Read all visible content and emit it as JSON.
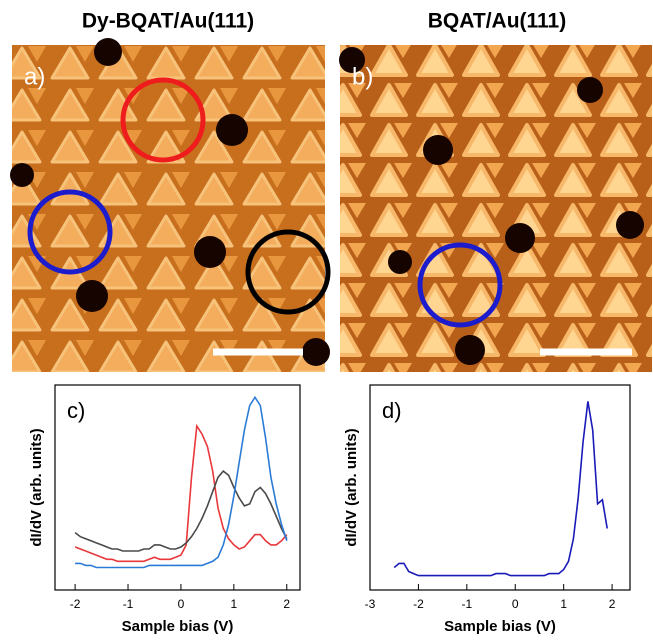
{
  "images": [
    {
      "title": "Dy-BQAT/Au(111)",
      "label": "a)"
    },
    {
      "title": "BQAT/Au(111)",
      "label": "b)"
    }
  ],
  "chart_data": [
    {
      "type": "line",
      "label": "c)",
      "x_label": "Sample bias (V)",
      "y_label": "dI/dV (arb. units)",
      "x": [
        -2.0,
        -1.9,
        -1.8,
        -1.7,
        -1.6,
        -1.5,
        -1.4,
        -1.3,
        -1.2,
        -1.1,
        -1.0,
        -0.9,
        -0.8,
        -0.7,
        -0.6,
        -0.5,
        -0.4,
        -0.3,
        -0.2,
        -0.1,
        0.0,
        0.1,
        0.2,
        0.3,
        0.4,
        0.5,
        0.6,
        0.7,
        0.8,
        0.9,
        1.0,
        1.1,
        1.2,
        1.3,
        1.4,
        1.5,
        1.6,
        1.7,
        1.8,
        1.9,
        2.0
      ],
      "series": [
        {
          "color": "#e8383b",
          "values": [
            0.21,
            0.2,
            0.19,
            0.18,
            0.17,
            0.16,
            0.15,
            0.15,
            0.14,
            0.14,
            0.14,
            0.14,
            0.14,
            0.14,
            0.15,
            0.16,
            0.15,
            0.15,
            0.15,
            0.16,
            0.17,
            0.22,
            0.55,
            0.8,
            0.76,
            0.7,
            0.58,
            0.4,
            0.3,
            0.25,
            0.22,
            0.2,
            0.21,
            0.24,
            0.27,
            0.27,
            0.24,
            0.22,
            0.22,
            0.24,
            0.27
          ]
        },
        {
          "color": "#4a4a4a",
          "values": [
            0.28,
            0.26,
            0.25,
            0.24,
            0.23,
            0.22,
            0.21,
            0.2,
            0.2,
            0.19,
            0.19,
            0.19,
            0.19,
            0.2,
            0.2,
            0.22,
            0.22,
            0.21,
            0.2,
            0.2,
            0.21,
            0.23,
            0.26,
            0.3,
            0.35,
            0.41,
            0.48,
            0.55,
            0.58,
            0.56,
            0.5,
            0.45,
            0.41,
            0.42,
            0.48,
            0.5,
            0.47,
            0.42,
            0.36,
            0.3,
            0.25
          ]
        },
        {
          "color": "#2b7bd6",
          "values": [
            0.13,
            0.13,
            0.12,
            0.12,
            0.11,
            0.11,
            0.11,
            0.11,
            0.11,
            0.11,
            0.11,
            0.11,
            0.11,
            0.11,
            0.12,
            0.12,
            0.12,
            0.12,
            0.12,
            0.12,
            0.12,
            0.12,
            0.12,
            0.12,
            0.12,
            0.13,
            0.14,
            0.16,
            0.22,
            0.32,
            0.46,
            0.62,
            0.78,
            0.9,
            0.94,
            0.9,
            0.74,
            0.55,
            0.42,
            0.32,
            0.24
          ]
        }
      ],
      "xlim": [
        -2.38,
        2.25
      ],
      "xticks": [
        -2,
        -1,
        0,
        1,
        2
      ],
      "ylim": [
        0,
        1
      ]
    },
    {
      "type": "line",
      "label": "d)",
      "x_label": "Sample bias (V)",
      "y_label": "dI/dV (arb. units)",
      "x": [
        -2.5,
        -2.4,
        -2.3,
        -2.2,
        -2.1,
        -2.0,
        -1.9,
        -1.8,
        -1.7,
        -1.6,
        -1.5,
        -1.4,
        -1.3,
        -1.2,
        -1.1,
        -1.0,
        -0.9,
        -0.8,
        -0.7,
        -0.6,
        -0.5,
        -0.4,
        -0.3,
        -0.2,
        -0.1,
        0.0,
        0.1,
        0.2,
        0.3,
        0.4,
        0.5,
        0.6,
        0.7,
        0.8,
        0.9,
        1.0,
        1.1,
        1.2,
        1.3,
        1.4,
        1.5,
        1.6,
        1.7,
        1.8,
        1.9
      ],
      "series": [
        {
          "color": "#1a1ab8",
          "values": [
            0.11,
            0.13,
            0.13,
            0.09,
            0.08,
            0.07,
            0.07,
            0.07,
            0.07,
            0.07,
            0.07,
            0.07,
            0.07,
            0.07,
            0.07,
            0.07,
            0.07,
            0.07,
            0.07,
            0.07,
            0.07,
            0.08,
            0.08,
            0.08,
            0.07,
            0.07,
            0.07,
            0.07,
            0.07,
            0.07,
            0.07,
            0.07,
            0.08,
            0.08,
            0.08,
            0.1,
            0.14,
            0.25,
            0.45,
            0.72,
            0.92,
            0.78,
            0.42,
            0.44,
            0.3
          ]
        }
      ],
      "xlim": [
        -3,
        2.37
      ],
      "xticks": [
        -3,
        -2,
        -1,
        0,
        1,
        2
      ],
      "ylim": [
        0,
        1
      ]
    }
  ]
}
